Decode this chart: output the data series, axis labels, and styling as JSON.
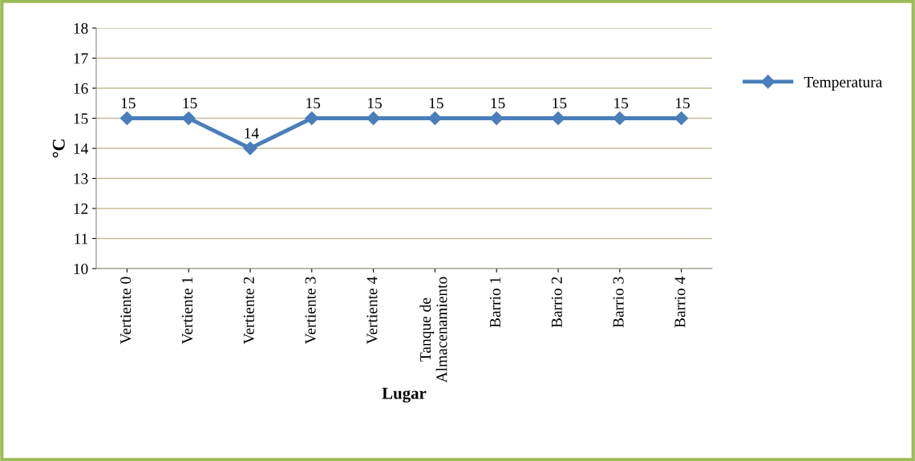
{
  "chart_data": {
    "type": "line",
    "xlabel": "Lugar",
    "ylabel": "°C",
    "categories": [
      "Vertiente 0",
      "Vertiente 1",
      "Vertiente 2",
      "Vertiente 3",
      "Vertiente 4",
      "Tanque de\nAlmacenamiento",
      "Barrio 1",
      "Barrio 2",
      "Barrio 3",
      "Barrio 4"
    ],
    "series": [
      {
        "name": "Temperatura",
        "color": "#4a7ebb",
        "values": [
          15,
          15,
          14,
          15,
          15,
          15,
          15,
          15,
          15,
          15
        ]
      }
    ],
    "ylim": [
      10,
      18
    ],
    "yticks": [
      10,
      11,
      12,
      13,
      14,
      15,
      16,
      17,
      18
    ],
    "grid": "y",
    "legend": "right",
    "marker": "diamond",
    "line_style": "solid",
    "data_labels": true
  }
}
